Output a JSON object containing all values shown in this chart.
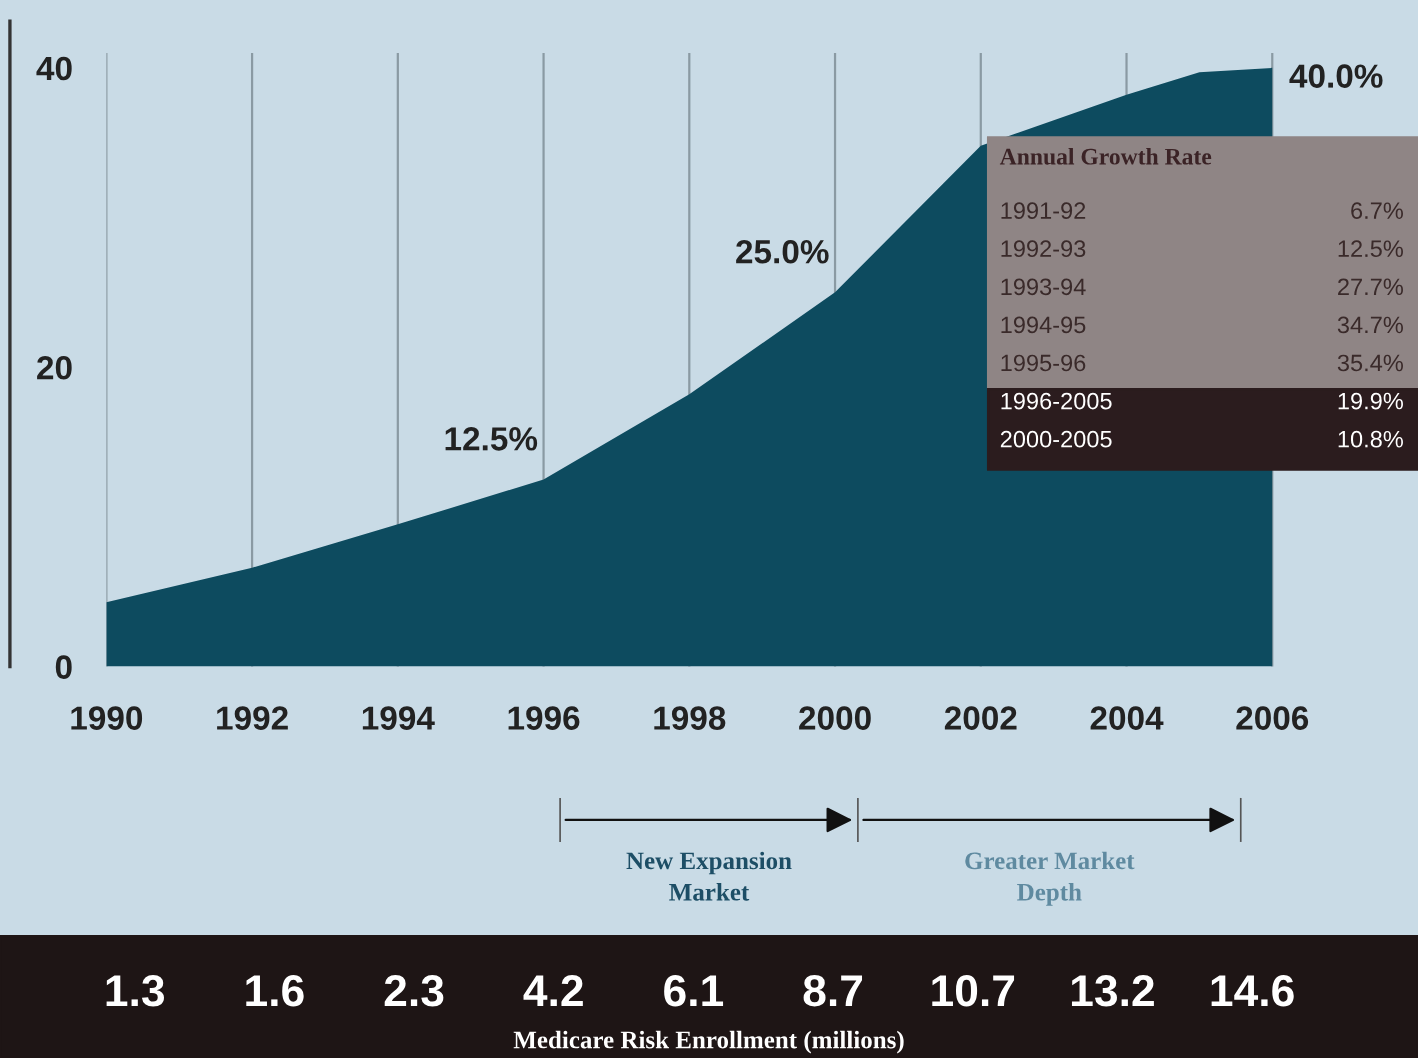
{
  "chart_data": {
    "type": "area",
    "x": [
      1990,
      1992,
      1994,
      1996,
      1998,
      2000,
      2002,
      2004,
      2005,
      2006
    ],
    "series": [
      {
        "color": "#0d4b5f",
        "values": [
          4.3,
          6.6,
          9.5,
          12.5,
          18.2,
          25.0,
          34.8,
          38.2,
          39.7,
          40.0
        ]
      }
    ],
    "xlim": [
      1990,
      2008
    ],
    "ylim": [
      0,
      41
    ],
    "xticks": [
      1990,
      1992,
      1994,
      1996,
      1998,
      2000,
      2002,
      2004,
      2006
    ],
    "yticks": [
      0,
      20,
      40
    ],
    "grid": "x",
    "annotations": [
      {
        "text": "12.5%",
        "x": 1996,
        "y": 12.5
      },
      {
        "text": "25.0%",
        "x": 2000,
        "y": 25.0
      },
      {
        "text": "40.0%",
        "x": 2006,
        "y": 40.0
      },
      "Annual Growth Rate",
      "1991-92",
      "6.7%",
      "1992-93",
      "12.5%",
      "1993-94",
      "27.7%",
      "1994-95",
      "34.7%",
      "1995-96",
      "35.4%",
      "1996-2005",
      "19.9%",
      "2000-2005",
      "10.8%",
      "New Expansion\nMarket",
      "Greater Market\nDepth",
      "1.3",
      "1.6",
      "2.3",
      "4.2",
      "6.1",
      "8.7",
      "10.7",
      "13.2",
      "14.6",
      "Medicare Risk Enrollment (millions)"
    ]
  }
}
